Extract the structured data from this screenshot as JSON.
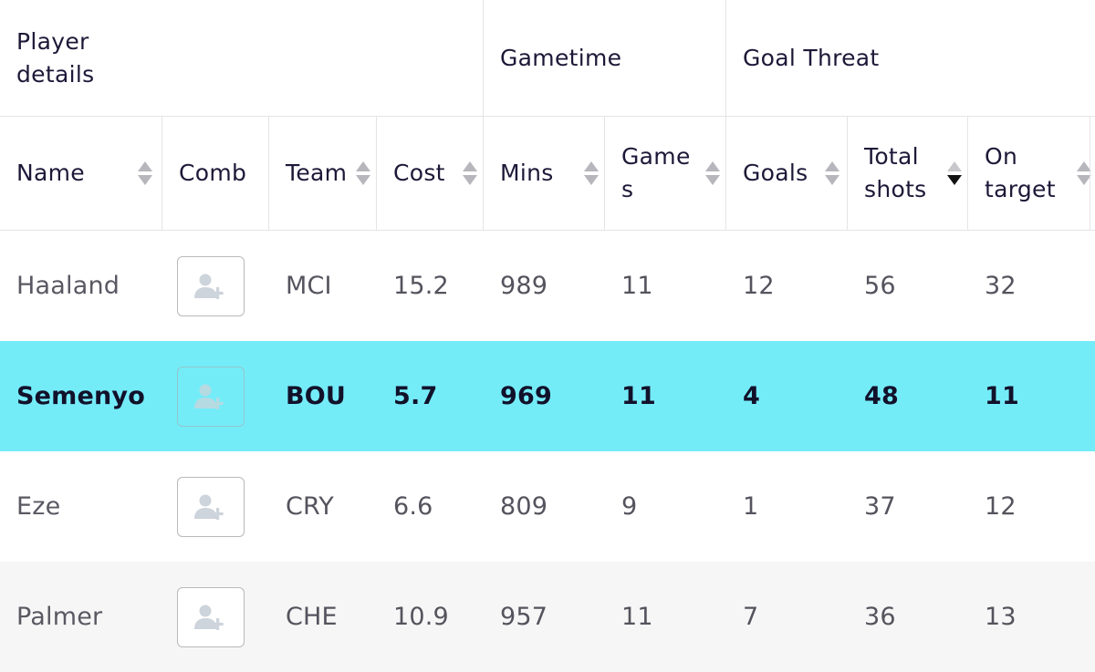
{
  "header_groups": {
    "player_details": "Player details",
    "gametime": "Gametime",
    "goal_threat": "Goal Threat"
  },
  "columns": {
    "name": "Name",
    "comb": "Comb",
    "team": "Team",
    "cost": "Cost",
    "mins": "Mins",
    "games": "Game s",
    "goals": "Goals",
    "total_shots": "Total shots",
    "on_target": "On target"
  },
  "sort": {
    "column": "total_shots",
    "direction": "descending",
    "arrow_color": "#111111"
  },
  "icons": {
    "comb_button": "add-user-icon",
    "sort": "sort-arrows-icon"
  },
  "highlight_color": "#74ecf8",
  "rows": [
    {
      "name": "Haaland",
      "team": "MCI",
      "cost": "15.2",
      "mins": "989",
      "games": "11",
      "goals": "12",
      "total_shots": "56",
      "on_target": "32",
      "highlighted": false
    },
    {
      "name": "Semenyo",
      "team": "BOU",
      "cost": "5.7",
      "mins": "969",
      "games": "11",
      "goals": "4",
      "total_shots": "48",
      "on_target": "11",
      "highlighted": true
    },
    {
      "name": "Eze",
      "team": "CRY",
      "cost": "6.6",
      "mins": "809",
      "games": "9",
      "goals": "1",
      "total_shots": "37",
      "on_target": "12",
      "highlighted": false
    },
    {
      "name": "Palmer",
      "team": "CHE",
      "cost": "10.9",
      "mins": "957",
      "games": "11",
      "goals": "7",
      "total_shots": "36",
      "on_target": "13",
      "highlighted": false
    }
  ]
}
